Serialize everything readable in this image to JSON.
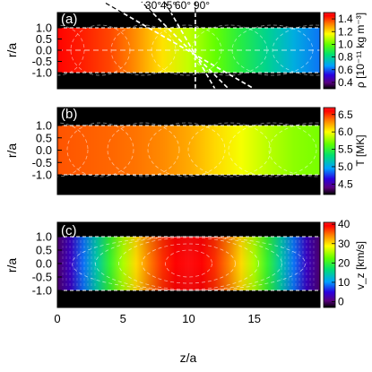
{
  "colors": {
    "background_band": "#000000",
    "contour": "#ffffff",
    "angle_line": "#ffffff",
    "frame": "#000000"
  },
  "chart_data": [
    {
      "type": "heatmap",
      "panel_label": "(a)",
      "ylabel": "r/a",
      "yticks": [
        "1.0",
        "0.5",
        "0.0",
        "-0.5",
        "-1.0"
      ],
      "colorbar_label": "ρ [10⁻¹¹ kg m⁻³]",
      "colorbar_ticks": [
        "1.4",
        "1.2",
        "1.0",
        "0.8",
        "0.6",
        "0.4"
      ],
      "colorbar_range": [
        0.3,
        1.5
      ],
      "description_values": {
        "z_low": 1.5,
        "z_high": 0.3
      },
      "angle_labels": [
        "30°",
        "45°",
        "60°",
        "90°"
      ]
    },
    {
      "type": "heatmap",
      "panel_label": "(b)",
      "ylabel": "r/a",
      "yticks": [
        "1.0",
        "0.5",
        "0.0",
        "-0.5",
        "-1.0"
      ],
      "colorbar_label": "T [MK]",
      "colorbar_ticks": [
        "6.5",
        "6.0",
        "5.5",
        "5.0",
        "4.5"
      ],
      "colorbar_range": [
        4.2,
        6.7
      ],
      "description_values": {
        "z_low": 6.3,
        "z_high": 5.6
      }
    },
    {
      "type": "heatmap",
      "panel_label": "(c)",
      "ylabel": "r/a",
      "xlabel": "z/a",
      "yticks": [
        "1.0",
        "0.5",
        "0.0",
        "-0.5",
        "-1.0"
      ],
      "xticks": [
        "0",
        "5",
        "10",
        "15"
      ],
      "xlim": [
        0,
        20
      ],
      "colorbar_label": "v_z [km/s]",
      "colorbar_ticks": [
        "40",
        "30",
        "20",
        "10",
        "0"
      ],
      "colorbar_range": [
        -3,
        41
      ],
      "description_values": {
        "vz_max": 40,
        "vz_min": 0,
        "peak_z": 10
      }
    }
  ]
}
